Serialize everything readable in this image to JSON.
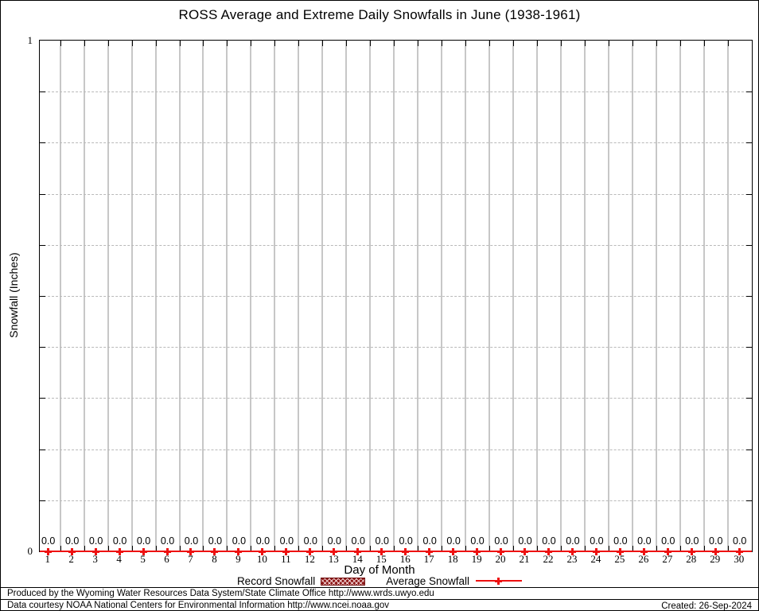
{
  "title": "ROSS Average and Extreme Daily Snowfalls in June (1938-1961)",
  "chart_data": {
    "type": "line",
    "title": "ROSS Average and Extreme Daily Snowfalls in June (1938-1961)",
    "xlabel": "Day of Month",
    "ylabel": "Snowfall (Inches)",
    "ylim": [
      0,
      1
    ],
    "y_major_tick_labels": [
      "0",
      "1"
    ],
    "y_minor_tick_interval": 0.1,
    "x_grid": "solid gray lines at day boundaries",
    "y_grid": "dotted gray lines every 0.1",
    "categories": [
      1,
      2,
      3,
      4,
      5,
      6,
      7,
      8,
      9,
      10,
      11,
      12,
      13,
      14,
      15,
      16,
      17,
      18,
      19,
      20,
      21,
      22,
      23,
      24,
      25,
      26,
      27,
      28,
      29,
      30
    ],
    "series": [
      {
        "name": "Record Snowfall",
        "style": "hatched-bar",
        "color": "#8b1414",
        "values": [
          0.0,
          0.0,
          0.0,
          0.0,
          0.0,
          0.0,
          0.0,
          0.0,
          0.0,
          0.0,
          0.0,
          0.0,
          0.0,
          0.0,
          0.0,
          0.0,
          0.0,
          0.0,
          0.0,
          0.0,
          0.0,
          0.0,
          0.0,
          0.0,
          0.0,
          0.0,
          0.0,
          0.0,
          0.0,
          0.0
        ]
      },
      {
        "name": "Average Snowfall",
        "style": "line-with-plus-markers",
        "color": "#ee1111",
        "values": [
          0.0,
          0.0,
          0.0,
          0.0,
          0.0,
          0.0,
          0.0,
          0.0,
          0.0,
          0.0,
          0.0,
          0.0,
          0.0,
          0.0,
          0.0,
          0.0,
          0.0,
          0.0,
          0.0,
          0.0,
          0.0,
          0.0,
          0.0,
          0.0,
          0.0,
          0.0,
          0.0,
          0.0,
          0.0,
          0.0
        ]
      }
    ],
    "point_label_decimals": 1,
    "legend_position": "below x-axis"
  },
  "axes": {
    "y_top_label": "1",
    "y_bottom_label": "0",
    "y_title": "Snowfall (Inches)",
    "x_title": "Day of Month"
  },
  "legend": {
    "record_label": "Record Snowfall",
    "average_label": "Average Snowfall"
  },
  "footer": {
    "line1": "Produced by the Wyoming Water Resources Data System/State Climate Office http://www.wrds.uwyo.edu",
    "line2": "Data courtesy NOAA National Centers for Environmental Information http://www.ncei.noaa.gov",
    "created": "Created: 26-Sep-2024"
  },
  "colors": {
    "average_line": "#ee1111",
    "record_fill": "#8b1414",
    "grid_solid": "#c7c7c7",
    "grid_dotted": "#b9b9b9"
  }
}
